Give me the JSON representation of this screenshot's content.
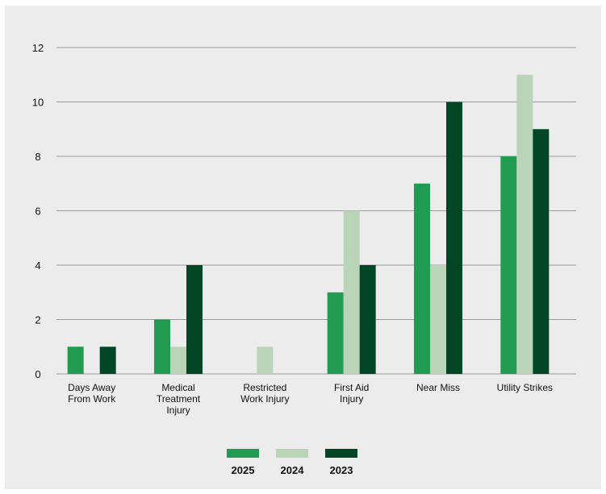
{
  "chart_data": {
    "type": "bar",
    "categories": [
      [
        "Days Away",
        "From Work"
      ],
      [
        "Medical",
        "Treatment",
        "Injury"
      ],
      [
        "Restricted",
        "Work Injury"
      ],
      [
        "First Aid",
        "Injury"
      ],
      [
        "Near Miss"
      ],
      [
        "Utility Strikes"
      ]
    ],
    "series": [
      {
        "name": "2025",
        "color": "#229b52",
        "values": [
          1,
          2,
          0,
          3,
          7,
          8
        ]
      },
      {
        "name": "2024",
        "color": "#bad4b8",
        "values": [
          0,
          1,
          1,
          6,
          4,
          11
        ]
      },
      {
        "name": "2023",
        "color": "#024625",
        "values": [
          1,
          4,
          0,
          4,
          10,
          9
        ]
      }
    ],
    "yticks": [
      0,
      2,
      4,
      6,
      8,
      10,
      12
    ],
    "ylim": [
      0,
      12
    ],
    "grid": true,
    "legend_position": "bottom-center"
  }
}
